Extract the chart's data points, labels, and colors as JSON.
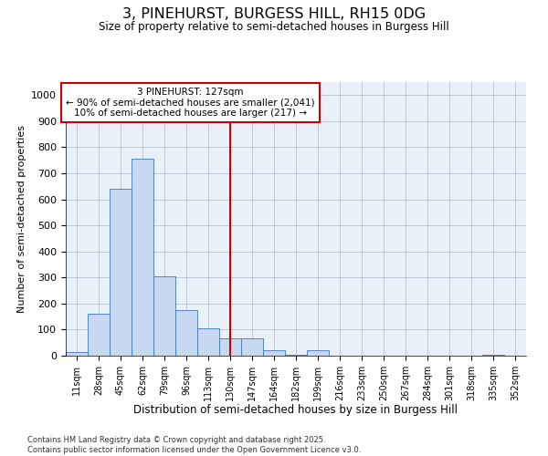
{
  "title": "3, PINEHURST, BURGESS HILL, RH15 0DG",
  "subtitle": "Size of property relative to semi-detached houses in Burgess Hill",
  "xlabel": "Distribution of semi-detached houses by size in Burgess Hill",
  "ylabel": "Number of semi-detached properties",
  "footnote": "Contains HM Land Registry data © Crown copyright and database right 2025.\nContains public sector information licensed under the Open Government Licence v3.0.",
  "bin_labels": [
    "11sqm",
    "28sqm",
    "45sqm",
    "62sqm",
    "79sqm",
    "96sqm",
    "113sqm",
    "130sqm",
    "147sqm",
    "164sqm",
    "182sqm",
    "199sqm",
    "216sqm",
    "233sqm",
    "250sqm",
    "267sqm",
    "284sqm",
    "301sqm",
    "318sqm",
    "335sqm",
    "352sqm"
  ],
  "bar_heights": [
    15,
    160,
    640,
    755,
    305,
    175,
    105,
    65,
    65,
    20,
    5,
    20,
    0,
    0,
    0,
    0,
    0,
    0,
    0,
    5,
    0
  ],
  "bar_color": "#c6d9f0",
  "bar_edge_color": "#4472c4",
  "grid_color": "#c0c8d8",
  "bg_color": "#eaf0f8",
  "vline_x": 7.0,
  "vline_color": "#cc0000",
  "annotation_title": "3 PINEHURST: 127sqm",
  "annotation_line1": "← 90% of semi-detached houses are smaller (2,041)",
  "annotation_line2": "10% of semi-detached houses are larger (217) →",
  "annotation_box_color": "#cc0000",
  "ylim": [
    0,
    1050
  ],
  "yticks": [
    0,
    100,
    200,
    300,
    400,
    500,
    600,
    700,
    800,
    900,
    1000
  ]
}
